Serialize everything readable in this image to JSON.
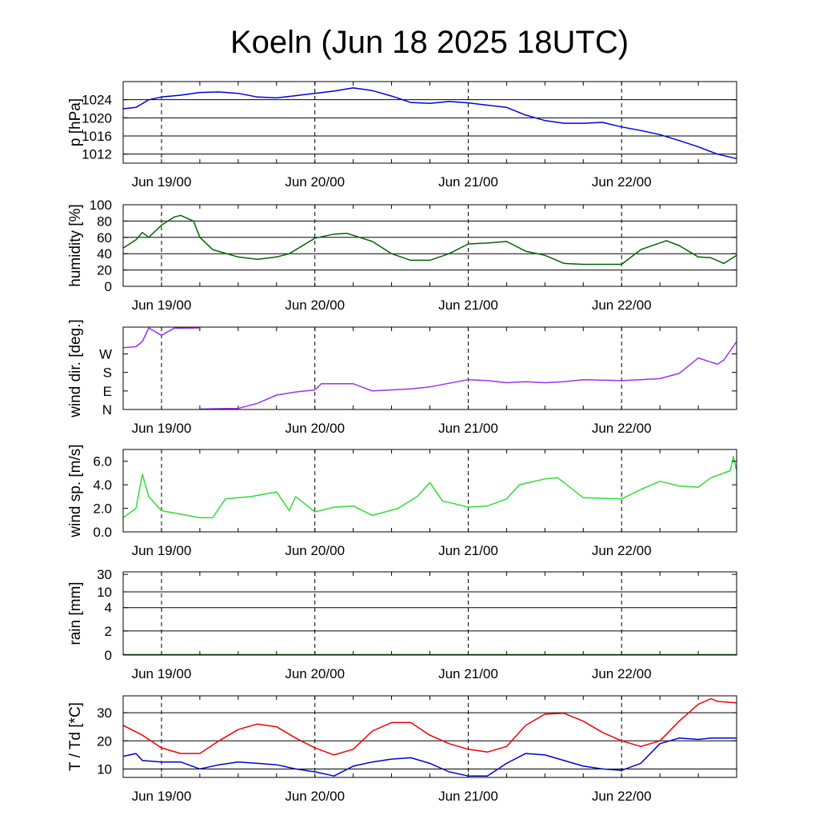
{
  "title": "Koeln (Jun 18 2025 18UTC)",
  "time_axis": {
    "start": "2025-06-18 18:00 UTC",
    "end": "2025-06-22 18:00 UTC",
    "labels": [
      "Jun 19/00",
      "Jun 20/00",
      "Jun 21/00",
      "Jun 22/00"
    ]
  },
  "chart_data": [
    {
      "type": "line",
      "ylabel": "p [hPa]",
      "ylim": [
        1010,
        1028
      ],
      "yticks": [
        1012,
        1016,
        1020,
        1024
      ],
      "grid_y": [
        1012,
        1016,
        1020,
        1024
      ],
      "color": "#0000dd",
      "series": [
        {
          "x": [
            "2025-06-18 18:00",
            "2025-06-18 20:00",
            "2025-06-18 22:00",
            "2025-06-19 00:00",
            "2025-06-19 03:00",
            "2025-06-19 06:00",
            "2025-06-19 09:00",
            "2025-06-19 12:00",
            "2025-06-19 15:00",
            "2025-06-19 18:00",
            "2025-06-19 21:00",
            "2025-06-20 00:00",
            "2025-06-20 03:00",
            "2025-06-20 06:00",
            "2025-06-20 09:00",
            "2025-06-20 12:00",
            "2025-06-20 15:00",
            "2025-06-20 18:00",
            "2025-06-20 21:00",
            "2025-06-21 00:00",
            "2025-06-21 03:00",
            "2025-06-21 06:00",
            "2025-06-21 09:00",
            "2025-06-21 12:00",
            "2025-06-21 15:00",
            "2025-06-21 18:00",
            "2025-06-21 21:00",
            "2025-06-22 00:00",
            "2025-06-22 03:00",
            "2025-06-22 06:00",
            "2025-06-22 09:00",
            "2025-06-22 12:00",
            "2025-06-22 15:00",
            "2025-06-22 18:00"
          ],
          "values": [
            1022.0,
            1022.3,
            1024.0,
            1024.6,
            1025.0,
            1025.6,
            1025.7,
            1025.4,
            1024.6,
            1024.4,
            1024.9,
            1025.4,
            1025.9,
            1026.6,
            1026.0,
            1024.8,
            1023.4,
            1023.2,
            1023.6,
            1023.3,
            1022.8,
            1022.3,
            1020.6,
            1019.4,
            1018.8,
            1018.8,
            1019.0,
            1018.0,
            1017.2,
            1016.3,
            1015.0,
            1013.6,
            1012.0,
            1011.0
          ]
        }
      ]
    },
    {
      "type": "line",
      "ylabel": "humidity [%]",
      "ylim": [
        0,
        100
      ],
      "yticks": [
        0,
        20,
        40,
        60,
        80,
        100
      ],
      "grid_y": [
        20,
        40,
        60,
        80
      ],
      "color": "#006400",
      "series": [
        {
          "x": [
            "2025-06-18 18:00",
            "2025-06-18 20:00",
            "2025-06-18 21:00",
            "2025-06-18 22:00",
            "2025-06-19 00:00",
            "2025-06-19 02:00",
            "2025-06-19 03:00",
            "2025-06-19 05:00",
            "2025-06-19 06:00",
            "2025-06-19 08:00",
            "2025-06-19 12:00",
            "2025-06-19 15:00",
            "2025-06-19 18:00",
            "2025-06-19 20:00",
            "2025-06-20 00:00",
            "2025-06-20 03:00",
            "2025-06-20 05:00",
            "2025-06-20 09:00",
            "2025-06-20 12:00",
            "2025-06-20 15:00",
            "2025-06-20 18:00",
            "2025-06-20 21:00",
            "2025-06-21 00:00",
            "2025-06-21 03:00",
            "2025-06-21 06:00",
            "2025-06-21 09:00",
            "2025-06-21 12:00",
            "2025-06-21 15:00",
            "2025-06-21 18:00",
            "2025-06-22 00:00",
            "2025-06-22 03:00",
            "2025-06-22 07:00",
            "2025-06-22 09:00",
            "2025-06-22 12:00",
            "2025-06-22 14:00",
            "2025-06-22 16:00",
            "2025-06-22 18:00"
          ],
          "values": [
            47,
            57,
            66,
            60,
            75,
            85,
            87,
            80,
            60,
            45,
            36,
            33,
            36,
            40,
            59,
            64,
            65,
            55,
            40,
            32,
            32,
            40,
            52,
            53,
            55,
            43,
            38,
            28,
            27,
            27,
            45,
            56,
            50,
            36,
            35,
            28,
            38
          ]
        }
      ]
    },
    {
      "type": "line",
      "ylabel": "wind dir. [deg.]",
      "ylim": [
        0,
        400
      ],
      "yticks": [
        0,
        90,
        180,
        270
      ],
      "yticklabels": [
        "N",
        "E",
        "S",
        "W"
      ],
      "color": "#9933ee",
      "series": [
        {
          "x": [
            "2025-06-18 18:00",
            "2025-06-18 20:00",
            "2025-06-18 21:00",
            "2025-06-18 22:00",
            "2025-06-19 00:00",
            "2025-06-19 02:00",
            "2025-06-19 04:00",
            "2025-06-19 06:00",
            null,
            "2025-06-19 06:00",
            "2025-06-19 10:00",
            "2025-06-19 12:00",
            "2025-06-19 15:00",
            "2025-06-19 18:00",
            "2025-06-19 21:00",
            "2025-06-20 00:00",
            "2025-06-20 01:00",
            "2025-06-20 06:00",
            "2025-06-20 09:00",
            "2025-06-20 12:00",
            "2025-06-20 15:00",
            "2025-06-20 18:00",
            "2025-06-21 00:00",
            "2025-06-21 03:00",
            "2025-06-21 06:00",
            "2025-06-21 09:00",
            "2025-06-21 12:00",
            "2025-06-21 15:00",
            "2025-06-21 18:00",
            "2025-06-22 00:00",
            "2025-06-22 03:00",
            "2025-06-22 06:00",
            "2025-06-22 09:00",
            "2025-06-22 12:00",
            "2025-06-22 15:00",
            "2025-06-22 16:00",
            "2025-06-22 18:00"
          ],
          "values": [
            300,
            305,
            330,
            400,
            360,
            395,
            395,
            400,
            null,
            0,
            5,
            5,
            30,
            70,
            85,
            95,
            125,
            125,
            90,
            95,
            100,
            110,
            145,
            140,
            130,
            135,
            130,
            135,
            145,
            140,
            145,
            150,
            175,
            250,
            220,
            240,
            330
          ]
        }
      ]
    },
    {
      "type": "line",
      "ylabel": "wind sp. [m/s]",
      "ylim": [
        0,
        7
      ],
      "yticks": [
        0.0,
        2.0,
        4.0,
        6.0
      ],
      "yticklabels": [
        "0.0",
        "2.0",
        "4.0",
        "6.0"
      ],
      "color": "#33dd33",
      "series": [
        {
          "x": [
            "2025-06-18 18:00",
            "2025-06-18 20:00",
            "2025-06-18 21:00",
            "2025-06-18 22:00",
            "2025-06-19 00:00",
            "2025-06-19 03:00",
            "2025-06-19 06:00",
            "2025-06-19 08:00",
            "2025-06-19 10:00",
            "2025-06-19 14:00",
            "2025-06-19 18:00",
            "2025-06-19 20:00",
            "2025-06-19 21:00",
            "2025-06-20 00:00",
            "2025-06-20 03:00",
            "2025-06-20 06:00",
            "2025-06-20 09:00",
            "2025-06-20 13:00",
            "2025-06-20 16:00",
            "2025-06-20 18:00",
            "2025-06-20 20:00",
            "2025-06-20 21:00",
            "2025-06-21 00:00",
            "2025-06-21 03:00",
            "2025-06-21 06:00",
            "2025-06-21 08:00",
            "2025-06-21 12:00",
            "2025-06-21 14:00",
            "2025-06-21 18:00",
            "2025-06-22 00:00",
            "2025-06-22 03:00",
            "2025-06-22 06:00",
            "2025-06-22 09:00",
            "2025-06-22 12:00",
            "2025-06-22 14:00",
            "2025-06-22 17:00",
            "2025-06-22 17:30",
            "2025-06-22 18:00"
          ],
          "values": [
            1.2,
            2.0,
            4.9,
            3.0,
            1.8,
            1.5,
            1.2,
            1.2,
            2.8,
            3.0,
            3.4,
            1.8,
            3.0,
            1.7,
            2.1,
            2.2,
            1.4,
            2.0,
            3.0,
            4.2,
            2.6,
            2.5,
            2.1,
            2.2,
            2.8,
            4.0,
            4.5,
            4.6,
            2.9,
            2.8,
            3.6,
            4.3,
            3.9,
            3.8,
            4.6,
            5.2,
            6.4,
            5.2
          ]
        }
      ]
    },
    {
      "type": "line",
      "ylabel": "rain [mm]",
      "yticks": [
        0,
        2,
        4,
        10,
        30
      ],
      "scale": "nonlinear",
      "grid_y": [
        2,
        4,
        10
      ],
      "color": "#006400",
      "series": [
        {
          "x": [
            "2025-06-18 18:00",
            "2025-06-22 18:00"
          ],
          "values": [
            0,
            0
          ]
        }
      ]
    },
    {
      "type": "line",
      "ylabel": "T / Td [*C]",
      "ylim": [
        7,
        36
      ],
      "yticks": [
        10,
        20,
        30
      ],
      "grid_y": [
        10,
        20,
        30
      ],
      "series": [
        {
          "color": "#ee0000",
          "x": [
            "2025-06-18 18:00",
            "2025-06-18 21:00",
            "2025-06-19 00:00",
            "2025-06-19 03:00",
            "2025-06-19 06:00",
            "2025-06-19 09:00",
            "2025-06-19 12:00",
            "2025-06-19 15:00",
            "2025-06-19 18:00",
            "2025-06-19 21:00",
            "2025-06-20 00:00",
            "2025-06-20 03:00",
            "2025-06-20 06:00",
            "2025-06-20 09:00",
            "2025-06-20 12:00",
            "2025-06-20 15:00",
            "2025-06-20 18:00",
            "2025-06-20 21:00",
            "2025-06-21 00:00",
            "2025-06-21 03:00",
            "2025-06-21 06:00",
            "2025-06-21 09:00",
            "2025-06-21 12:00",
            "2025-06-21 15:00",
            "2025-06-21 18:00",
            "2025-06-21 21:00",
            "2025-06-22 00:00",
            "2025-06-22 03:00",
            "2025-06-22 06:00",
            "2025-06-22 09:00",
            "2025-06-22 12:00",
            "2025-06-22 14:00",
            "2025-06-22 15:00",
            "2025-06-22 18:00"
          ],
          "values": [
            25.5,
            22.0,
            17.5,
            15.5,
            15.5,
            20.0,
            24.0,
            26.0,
            25.0,
            21.0,
            17.5,
            15.0,
            17.0,
            23.5,
            26.5,
            26.5,
            22.0,
            19.0,
            17.0,
            16.0,
            18.0,
            25.5,
            29.5,
            29.8,
            27.0,
            23.0,
            20.0,
            18.0,
            20.0,
            27.0,
            33.0,
            35.0,
            34.0,
            33.5
          ]
        },
        {
          "color": "#0000cc",
          "x": [
            "2025-06-18 18:00",
            "2025-06-18 20:00",
            "2025-06-18 21:00",
            "2025-06-19 00:00",
            "2025-06-19 03:00",
            "2025-06-19 06:00",
            "2025-06-19 09:00",
            "2025-06-19 12:00",
            "2025-06-19 15:00",
            "2025-06-19 18:00",
            "2025-06-19 21:00",
            "2025-06-20 00:00",
            "2025-06-20 03:00",
            "2025-06-20 06:00",
            "2025-06-20 09:00",
            "2025-06-20 12:00",
            "2025-06-20 15:00",
            "2025-06-20 18:00",
            "2025-06-20 21:00",
            "2025-06-21 00:00",
            "2025-06-21 03:00",
            "2025-06-21 06:00",
            "2025-06-21 09:00",
            "2025-06-21 12:00",
            "2025-06-21 15:00",
            "2025-06-21 18:00",
            "2025-06-21 21:00",
            "2025-06-22 00:00",
            "2025-06-22 03:00",
            "2025-06-22 06:00",
            "2025-06-22 09:00",
            "2025-06-22 12:00",
            "2025-06-22 14:00",
            "2025-06-22 18:00"
          ],
          "values": [
            14.5,
            15.5,
            13.0,
            12.5,
            12.5,
            10.0,
            11.5,
            12.5,
            12.0,
            11.5,
            10.0,
            9.0,
            7.5,
            11.0,
            12.5,
            13.5,
            14.0,
            12.0,
            9.0,
            7.5,
            7.5,
            12.0,
            15.5,
            15.0,
            13.0,
            11.0,
            10.0,
            9.5,
            12.0,
            19.0,
            21.0,
            20.5,
            21.0,
            21.0
          ]
        }
      ]
    }
  ]
}
